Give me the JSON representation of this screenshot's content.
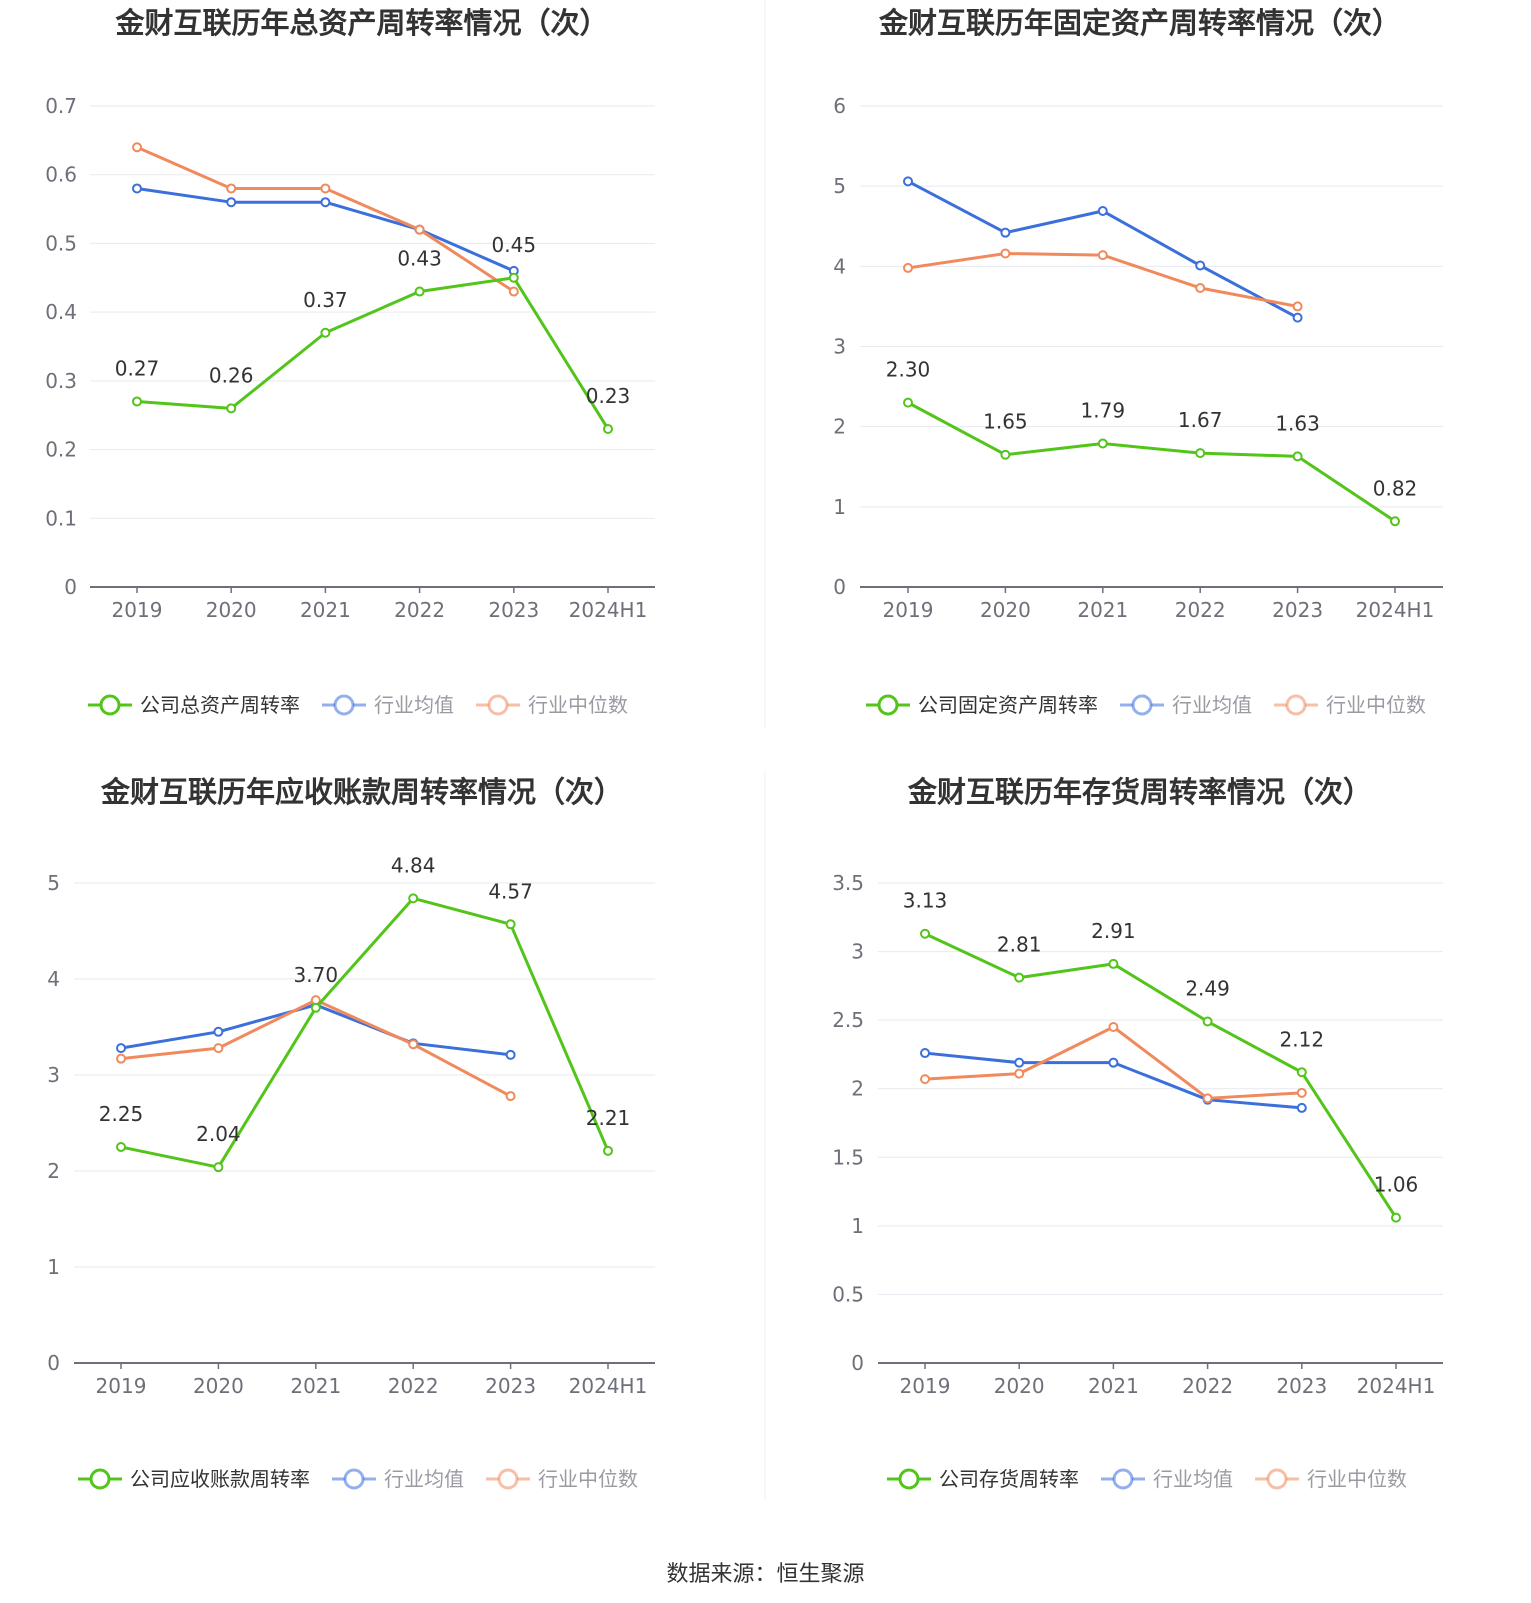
{
  "colors": {
    "company": "#52c41a",
    "avg": "#3a6fdc",
    "median": "#f08a5d"
  },
  "source_text": "数据来源：恒生聚源",
  "chart_data": [
    {
      "type": "line",
      "title": "金财互联历年总资产周转率情况（次）",
      "categories": [
        "2019",
        "2020",
        "2021",
        "2022",
        "2023",
        "2024H1"
      ],
      "ylim": [
        0,
        0.7
      ],
      "yticks": [
        0,
        0.1,
        0.2,
        0.3,
        0.4,
        0.5,
        0.6,
        0.7
      ],
      "ytick_labels": [
        "0",
        "0.1",
        "0.2",
        "0.3",
        "0.4",
        "0.5",
        "0.6",
        "0.7"
      ],
      "series": [
        {
          "name": "公司总资产周转率",
          "role": "company",
          "values": [
            0.27,
            0.26,
            0.37,
            0.43,
            0.45,
            0.23
          ],
          "labels": [
            "0.27",
            "0.26",
            "0.37",
            "0.43",
            "0.45",
            "0.23"
          ]
        },
        {
          "name": "行业均值",
          "role": "avg",
          "values": [
            0.58,
            0.56,
            0.56,
            0.52,
            0.46,
            null
          ]
        },
        {
          "name": "行业中位数",
          "role": "median",
          "values": [
            0.64,
            0.58,
            0.58,
            0.52,
            0.43,
            null
          ]
        }
      ]
    },
    {
      "type": "line",
      "title": "金财互联历年固定资产周转率情况（次）",
      "categories": [
        "2019",
        "2020",
        "2021",
        "2022",
        "2023",
        "2024H1"
      ],
      "ylim": [
        0,
        6
      ],
      "yticks": [
        0,
        1,
        2,
        3,
        4,
        5,
        6
      ],
      "ytick_labels": [
        "0",
        "1",
        "2",
        "3",
        "4",
        "5",
        "6"
      ],
      "series": [
        {
          "name": "公司固定资产周转率",
          "role": "company",
          "values": [
            2.3,
            1.65,
            1.79,
            1.67,
            1.63,
            0.82
          ],
          "labels": [
            "2.30",
            "1.65",
            "1.79",
            "1.67",
            "1.63",
            "0.82"
          ]
        },
        {
          "name": "行业均值",
          "role": "avg",
          "values": [
            5.06,
            4.42,
            4.69,
            4.01,
            3.36,
            null
          ]
        },
        {
          "name": "行业中位数",
          "role": "median",
          "values": [
            3.98,
            4.16,
            4.14,
            3.73,
            3.5,
            null
          ]
        }
      ]
    },
    {
      "type": "line",
      "title": "金财互联历年应收账款周转率情况（次）",
      "categories": [
        "2019",
        "2020",
        "2021",
        "2022",
        "2023",
        "2024H1"
      ],
      "ylim": [
        0,
        5
      ],
      "yticks": [
        0,
        1,
        2,
        3,
        4,
        5
      ],
      "ytick_labels": [
        "0",
        "1",
        "2",
        "3",
        "4",
        "5"
      ],
      "series": [
        {
          "name": "公司应收账款周转率",
          "role": "company",
          "values": [
            2.25,
            2.04,
            3.7,
            4.84,
            4.57,
            2.21
          ],
          "labels": [
            "2.25",
            "2.04",
            "3.70",
            "4.84",
            "4.57",
            "2.21"
          ]
        },
        {
          "name": "行业均值",
          "role": "avg",
          "values": [
            3.28,
            3.45,
            3.73,
            3.33,
            3.21,
            null
          ]
        },
        {
          "name": "行业中位数",
          "role": "median",
          "values": [
            3.17,
            3.28,
            3.78,
            3.32,
            2.78,
            null
          ]
        }
      ]
    },
    {
      "type": "line",
      "title": "金财互联历年存货周转率情况（次）",
      "categories": [
        "2019",
        "2020",
        "2021",
        "2022",
        "2023",
        "2024H1"
      ],
      "ylim": [
        0,
        3.5
      ],
      "yticks": [
        0,
        0.5,
        1,
        1.5,
        2,
        2.5,
        3,
        3.5
      ],
      "ytick_labels": [
        "0",
        "0.5",
        "1",
        "1.5",
        "2",
        "2.5",
        "3",
        "3.5"
      ],
      "series": [
        {
          "name": "公司存货周转率",
          "role": "company",
          "values": [
            3.13,
            2.81,
            2.91,
            2.49,
            2.12,
            1.06
          ],
          "labels": [
            "3.13",
            "2.81",
            "2.91",
            "2.49",
            "2.12",
            "1.06"
          ]
        },
        {
          "name": "行业均值",
          "role": "avg",
          "values": [
            2.26,
            2.19,
            2.19,
            1.92,
            1.86,
            null
          ]
        },
        {
          "name": "行业中位数",
          "role": "median",
          "values": [
            2.07,
            2.11,
            2.45,
            1.93,
            1.97,
            null
          ]
        }
      ]
    }
  ]
}
